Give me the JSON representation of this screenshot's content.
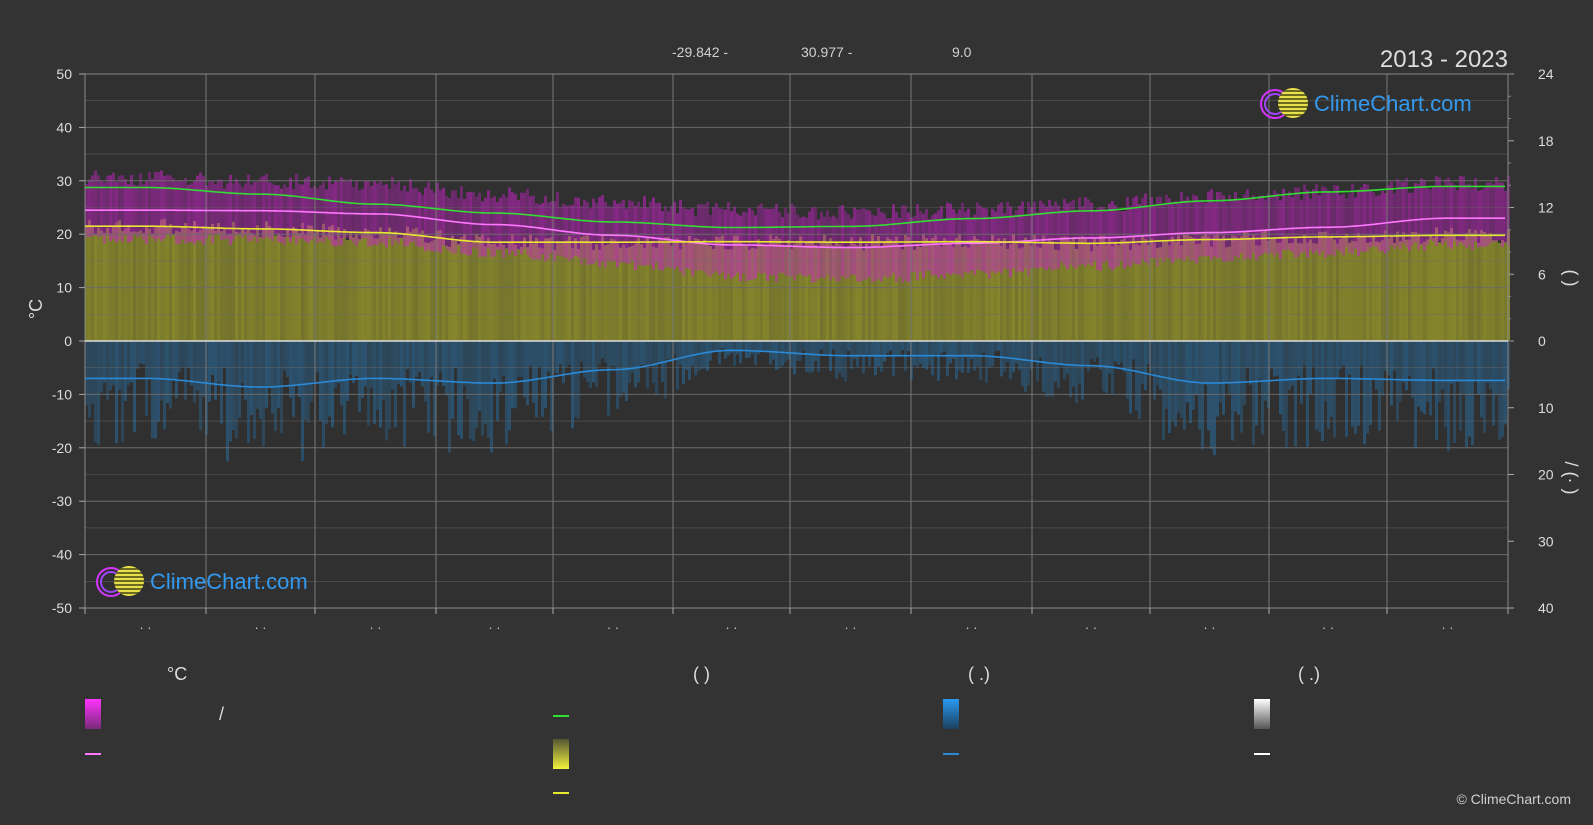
{
  "header": {
    "lat_text": "-29.842 -",
    "lon_text": "30.977 -",
    "elev_text": "9.0",
    "period": "2013 - 2023"
  },
  "logo": {
    "text": "ClimeChart.com"
  },
  "copyright": "© ClimeChart.com",
  "legend": {
    "col1_head": "°C",
    "col2_head": "(        )",
    "col3_head": "(   .)",
    "col4_head": "(   .)",
    "slash": "/"
  },
  "colors": {
    "background": "#333333",
    "daylight": "#33dd33",
    "sunshine": "#e8e832",
    "sunshine_fill": "#8a8a2c",
    "temp_band": "#cc22cc",
    "temp_mean": "#ff77ff",
    "precip": "#2a8ad8",
    "precip_fill": "#2a5f86",
    "grid": "#6a6a6a"
  },
  "chart_data": {
    "type": "line",
    "categories": [
      "· ·",
      "· ·",
      "· ·",
      "· ·",
      "· ·",
      "· ·",
      "· ·",
      "· ·",
      "· ·",
      "· ·",
      "· ·",
      "· ·"
    ],
    "y_left": {
      "label": "°C",
      "ticks": [
        "50",
        "40",
        "30",
        "20",
        "10",
        "0",
        "-10",
        "-20",
        "-30",
        "-40",
        "-50"
      ],
      "ylim": [
        -50,
        50
      ]
    },
    "y_right_top": {
      "label": "(    )",
      "ticks": [
        "24",
        "18",
        "12",
        "6",
        "0"
      ],
      "ylim": [
        0,
        24
      ]
    },
    "y_right_bottom": {
      "label": "/    (·   )",
      "ticks": [
        "0",
        "10",
        "20",
        "30",
        "40"
      ],
      "ylim": [
        0,
        40
      ]
    },
    "series": [
      {
        "key": "daylight_hours",
        "axis": "right_top",
        "values": [
          13.8,
          13.2,
          12.3,
          11.5,
          10.7,
          10.2,
          10.3,
          11.0,
          11.7,
          12.6,
          13.4,
          13.9
        ]
      },
      {
        "key": "temp_mean_c",
        "axis": "left",
        "values": [
          24.5,
          24.4,
          23.8,
          21.8,
          19.8,
          18.0,
          17.5,
          18.3,
          19.3,
          20.3,
          21.3,
          23.0
        ]
      },
      {
        "key": "sunshine_c_equiv",
        "axis": "left",
        "values": [
          21.5,
          21.0,
          20.3,
          18.5,
          18.5,
          18.6,
          18.5,
          18.6,
          18.3,
          19.0,
          19.5,
          19.8
        ]
      },
      {
        "key": "precip_daily_mm",
        "axis": "right_bottom",
        "values": [
          5.6,
          6.9,
          5.6,
          6.3,
          4.3,
          1.4,
          2.2,
          2.2,
          3.7,
          6.3,
          5.6,
          5.9
        ]
      }
    ],
    "temp_band": {
      "max": [
        29.0,
        28.5,
        28.0,
        26.0,
        24.5,
        23.0,
        22.5,
        23.0,
        24.0,
        25.5,
        26.5,
        28.0
      ],
      "min": [
        20.0,
        20.0,
        19.5,
        17.5,
        15.5,
        13.0,
        12.5,
        13.5,
        15.0,
        16.5,
        17.5,
        19.0
      ]
    },
    "grid": true
  }
}
